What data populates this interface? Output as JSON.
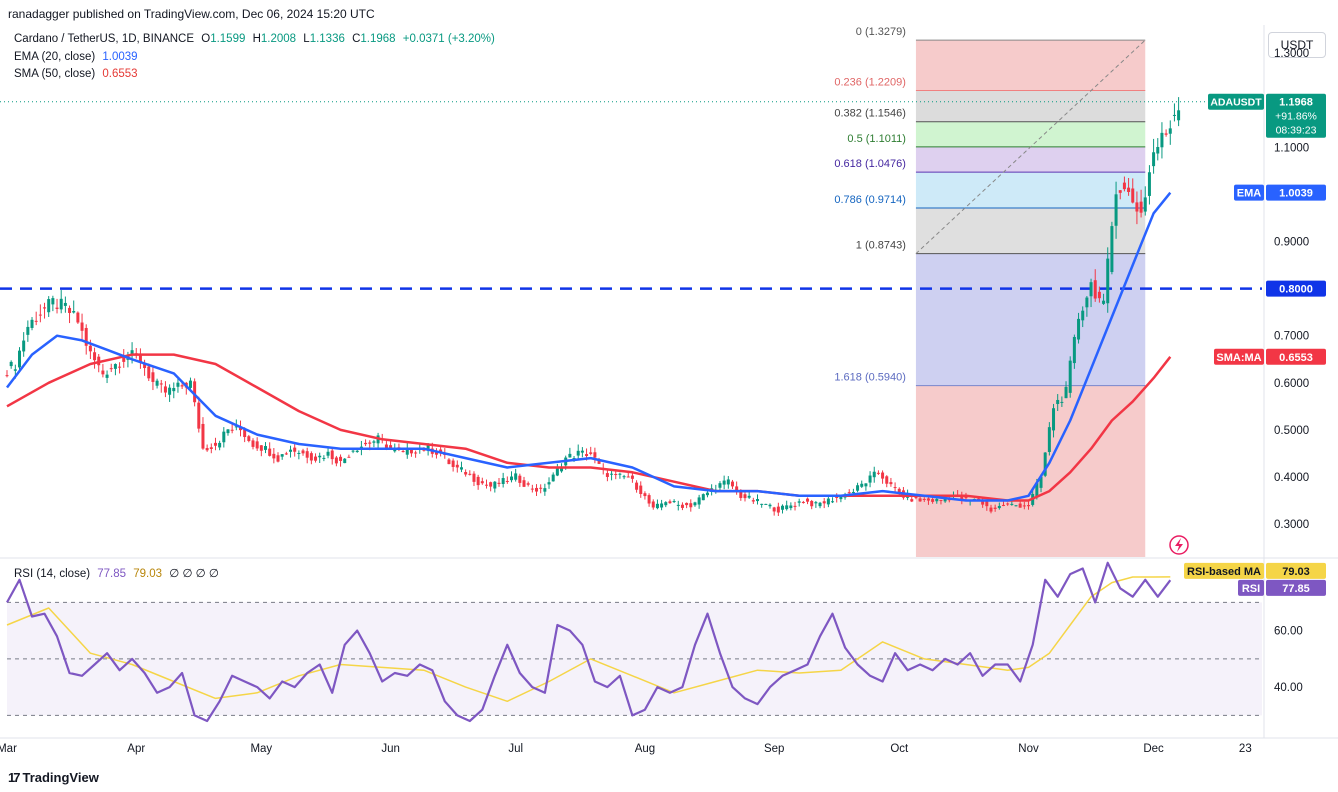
{
  "header": {
    "publisher": "ranadagger published on TradingView.com, Dec 06, 2024 15:20 UTC"
  },
  "legend": {
    "symbol": "Cardano / TetherUS, 1D, BINANCE",
    "open_label": "O",
    "open": "1.1599",
    "high_label": "H",
    "high": "1.2008",
    "low_label": "L",
    "low": "1.1336",
    "close_label": "C",
    "close": "1.1968",
    "change": "+0.0371 (+3.20%)",
    "ema_label": "EMA (20, close)",
    "ema_value": "1.0039",
    "sma_label": "SMA (50, close)",
    "sma_value": "0.6553",
    "rsi_label": "RSI (14, close)",
    "rsi_value": "77.85",
    "rsi_ma_value": "79.03",
    "rsi_extras": "∅ ∅ ∅ ∅"
  },
  "currency_button": "USDT",
  "footer": {
    "brand": "TradingView",
    "logo_mark": "17"
  },
  "colors": {
    "up": "#089981",
    "down": "#f23645",
    "ema": "#2962ff",
    "sma": "#f23645",
    "rsi": "#7e57c2",
    "rsi_ma": "#f5d547",
    "support": "#1034e8"
  },
  "chart_data": [
    {
      "type": "candlestick",
      "title": "Cardano / TetherUS, 1D, BINANCE",
      "ylim": [
        0.23,
        1.36
      ],
      "y_ticks": [
        1.3,
        1.1,
        1.0,
        0.9,
        0.7,
        0.6,
        0.5,
        0.4,
        0.3
      ],
      "y_tick_labels": [
        "1.3000",
        "1.1000",
        "1.0000",
        "0.9000",
        "0.7000",
        "0.6000",
        "0.5000",
        "0.4000",
        "0.3000"
      ],
      "x_ticks": [
        {
          "label": "Mar",
          "day": 0
        },
        {
          "label": "Apr",
          "day": 31
        },
        {
          "label": "May",
          "day": 61
        },
        {
          "label": "Jun",
          "day": 92
        },
        {
          "label": "Jul",
          "day": 122
        },
        {
          "label": "Aug",
          "day": 153
        },
        {
          "label": "Sep",
          "day": 184
        },
        {
          "label": "Oct",
          "day": 214
        },
        {
          "label": "Nov",
          "day": 245
        },
        {
          "label": "Dec",
          "day": 275
        },
        {
          "label": "23",
          "day": 297
        }
      ],
      "price_series": {
        "days": [
          0,
          3,
          6,
          9,
          12,
          15,
          18,
          21,
          24,
          27,
          30,
          33,
          36,
          39,
          42,
          45,
          48,
          51,
          54,
          57,
          60,
          63,
          66,
          69,
          72,
          75,
          78,
          81,
          84,
          87,
          90,
          93,
          96,
          99,
          102,
          105,
          108,
          111,
          114,
          117,
          120,
          123,
          126,
          129,
          132,
          135,
          138,
          141,
          144,
          147,
          150,
          153,
          156,
          159,
          162,
          165,
          168,
          171,
          174,
          177,
          180,
          183,
          186,
          189,
          192,
          195,
          198,
          201,
          204,
          207,
          210,
          213,
          216,
          219,
          222,
          225,
          228,
          231,
          234,
          237,
          240,
          243,
          246,
          249,
          252,
          255,
          258,
          261,
          264,
          267,
          270,
          273,
          276,
          279
        ],
        "closes": [
          0.64,
          0.72,
          0.75,
          0.77,
          0.76,
          0.73,
          0.66,
          0.62,
          0.64,
          0.66,
          0.65,
          0.6,
          0.58,
          0.59,
          0.6,
          0.46,
          0.47,
          0.5,
          0.5,
          0.47,
          0.46,
          0.44,
          0.46,
          0.45,
          0.44,
          0.45,
          0.43,
          0.46,
          0.47,
          0.48,
          0.46,
          0.45,
          0.46,
          0.46,
          0.45,
          0.42,
          0.41,
          0.39,
          0.38,
          0.39,
          0.4,
          0.38,
          0.37,
          0.4,
          0.44,
          0.45,
          0.45,
          0.41,
          0.4,
          0.4,
          0.37,
          0.33,
          0.35,
          0.34,
          0.34,
          0.36,
          0.38,
          0.39,
          0.36,
          0.35,
          0.34,
          0.33,
          0.34,
          0.35,
          0.34,
          0.35,
          0.36,
          0.37,
          0.39,
          0.41,
          0.38,
          0.36,
          0.35,
          0.35,
          0.35,
          0.36,
          0.35,
          0.35,
          0.33,
          0.34,
          0.34,
          0.34,
          0.4,
          0.55,
          0.58,
          0.74,
          0.81,
          0.76,
          1.02,
          1.0,
          0.96,
          1.09,
          1.13,
          1.197
        ]
      },
      "ema_20": {
        "days": [
          0,
          6,
          12,
          18,
          24,
          30,
          40,
          50,
          60,
          70,
          80,
          90,
          100,
          110,
          120,
          130,
          140,
          150,
          160,
          170,
          180,
          190,
          200,
          210,
          220,
          230,
          240,
          245,
          250,
          255,
          260,
          265,
          270,
          275,
          279
        ],
        "values": [
          0.59,
          0.66,
          0.7,
          0.69,
          0.67,
          0.65,
          0.62,
          0.53,
          0.49,
          0.47,
          0.46,
          0.46,
          0.46,
          0.44,
          0.42,
          0.43,
          0.44,
          0.42,
          0.38,
          0.37,
          0.37,
          0.36,
          0.36,
          0.37,
          0.36,
          0.35,
          0.35,
          0.36,
          0.43,
          0.52,
          0.63,
          0.74,
          0.85,
          0.96,
          1.0039
        ]
      },
      "sma_50": {
        "days": [
          0,
          10,
          20,
          30,
          40,
          50,
          60,
          70,
          80,
          90,
          100,
          110,
          120,
          130,
          140,
          150,
          160,
          170,
          180,
          190,
          200,
          210,
          220,
          230,
          240,
          245,
          250,
          255,
          260,
          265,
          270,
          275,
          279
        ],
        "values": [
          0.55,
          0.6,
          0.64,
          0.66,
          0.66,
          0.64,
          0.59,
          0.54,
          0.5,
          0.48,
          0.47,
          0.46,
          0.43,
          0.42,
          0.42,
          0.41,
          0.39,
          0.37,
          0.37,
          0.36,
          0.36,
          0.36,
          0.36,
          0.36,
          0.35,
          0.35,
          0.37,
          0.41,
          0.46,
          0.52,
          0.56,
          0.61,
          0.6553
        ]
      },
      "horizontal_level": {
        "value": 0.8,
        "label": "0.8000"
      },
      "fibonacci": {
        "start_day": 218,
        "end_day": 273,
        "levels": [
          {
            "ratio": "0",
            "price": 1.3279,
            "label": "0 (1.3279)"
          },
          {
            "ratio": "0.236",
            "price": 1.2209,
            "label": "0.236 (1.2209)"
          },
          {
            "ratio": "0.382",
            "price": 1.1546,
            "label": "0.382 (1.1546)"
          },
          {
            "ratio": "0.5",
            "price": 1.1011,
            "label": "0.5 (1.1011)"
          },
          {
            "ratio": "0.618",
            "price": 1.0476,
            "label": "0.618 (1.0476)"
          },
          {
            "ratio": "0.786",
            "price": 0.9714,
            "label": "0.786 (0.9714)"
          },
          {
            "ratio": "1",
            "price": 0.8743,
            "label": "1 (0.8743)"
          },
          {
            "ratio": "1.618",
            "price": 0.594,
            "label": "1.618 (0.5940)"
          }
        ]
      },
      "price_labels": {
        "symbol": "ADAUSDT",
        "price": "1.1968",
        "pct": "+91.86%",
        "countdown": "08:39:23",
        "ema_tag": "EMA",
        "ema_value": "1.0039",
        "sma_tag": "SMA:MA",
        "sma_value": "0.6553",
        "level_value": "0.8000"
      }
    },
    {
      "type": "line",
      "title": "RSI (14, close)",
      "ylim": [
        22,
        85
      ],
      "y_ticks": [
        60,
        40
      ],
      "y_tick_labels": [
        "60.00",
        "40.00"
      ],
      "bands": {
        "upper": 70,
        "middle": 50,
        "lower": 30
      },
      "rsi": {
        "days": [
          0,
          3,
          6,
          9,
          12,
          15,
          18,
          21,
          24,
          27,
          30,
          33,
          36,
          39,
          42,
          45,
          48,
          51,
          54,
          57,
          60,
          63,
          66,
          69,
          72,
          75,
          78,
          81,
          84,
          87,
          90,
          93,
          96,
          99,
          102,
          105,
          108,
          111,
          114,
          117,
          120,
          123,
          126,
          129,
          132,
          135,
          138,
          141,
          144,
          147,
          150,
          153,
          156,
          159,
          162,
          165,
          168,
          171,
          174,
          177,
          180,
          183,
          186,
          189,
          192,
          195,
          198,
          201,
          204,
          207,
          210,
          213,
          216,
          219,
          222,
          225,
          228,
          231,
          234,
          237,
          240,
          243,
          246,
          249,
          252,
          255,
          258,
          261,
          264,
          267,
          270,
          273,
          276,
          279
        ],
        "values": [
          70,
          78,
          65,
          66,
          58,
          45,
          44,
          48,
          52,
          46,
          50,
          45,
          38,
          40,
          45,
          30,
          28,
          35,
          44,
          42,
          40,
          36,
          42,
          40,
          45,
          48,
          38,
          55,
          60,
          52,
          42,
          45,
          44,
          48,
          46,
          35,
          30,
          28,
          32,
          44,
          55,
          45,
          40,
          38,
          62,
          60,
          55,
          42,
          40,
          44,
          30,
          32,
          40,
          38,
          40,
          55,
          66,
          52,
          40,
          36,
          34,
          40,
          44,
          46,
          48,
          58,
          66,
          54,
          48,
          44,
          42,
          52,
          46,
          48,
          46,
          50,
          48,
          52,
          44,
          48,
          48,
          42,
          55,
          78,
          72,
          80,
          82,
          70,
          84,
          75,
          72,
          78,
          72,
          77.85
        ]
      },
      "rsi_ma": {
        "days": [
          0,
          10,
          20,
          30,
          40,
          50,
          60,
          70,
          80,
          90,
          100,
          110,
          120,
          130,
          140,
          150,
          160,
          170,
          180,
          190,
          200,
          210,
          220,
          230,
          240,
          245,
          250,
          255,
          260,
          265,
          270,
          275,
          279
        ],
        "values": [
          62,
          68,
          52,
          48,
          42,
          36,
          38,
          44,
          48,
          47,
          46,
          40,
          35,
          42,
          50,
          44,
          38,
          42,
          46,
          45,
          46,
          56,
          50,
          48,
          46,
          47,
          52,
          62,
          72,
          77,
          79,
          79,
          79.03
        ]
      },
      "labels": {
        "ma_tag": "RSI-based MA",
        "ma_value": "79.03",
        "rsi_tag": "RSI",
        "rsi_value": "77.85"
      }
    }
  ]
}
